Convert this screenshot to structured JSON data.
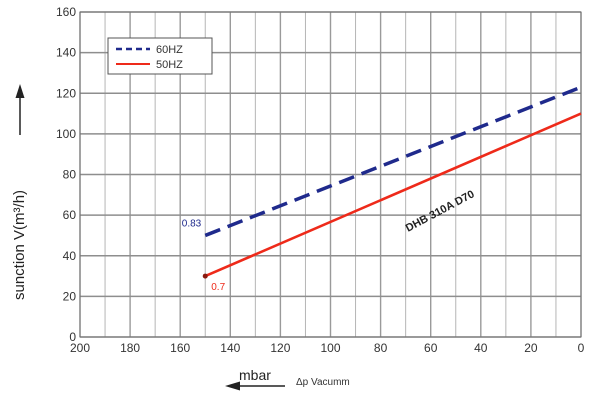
{
  "chart_data": {
    "type": "line",
    "ylabel": "sunction V(m³/h)",
    "xlabel_main": "mbar",
    "xlabel_sub": "Δp  Vacumm",
    "xlim": [
      200,
      0
    ],
    "ylim": [
      0,
      160
    ],
    "x_ticks": [
      200,
      180,
      160,
      140,
      120,
      100,
      80,
      60,
      40,
      20,
      0
    ],
    "y_ticks": [
      0,
      20,
      40,
      60,
      80,
      100,
      120,
      140,
      160
    ],
    "grid": true,
    "legend_position": "top-left",
    "series_label": "DHB 310A D70",
    "series": [
      {
        "name": "60HZ",
        "color": "#1f2a8c",
        "style": "dashed",
        "x": [
          150,
          0
        ],
        "y": [
          50,
          123
        ]
      },
      {
        "name": "50HZ",
        "color": "#ee2a1a",
        "style": "solid",
        "x": [
          150,
          0
        ],
        "y": [
          30,
          110
        ]
      }
    ],
    "annotations": [
      {
        "text": "0.83",
        "x": 150,
        "y": 50,
        "color": "#1f2a8c"
      },
      {
        "text": "0.7",
        "x": 150,
        "y": 30,
        "color": "#ee2a1a"
      }
    ]
  }
}
